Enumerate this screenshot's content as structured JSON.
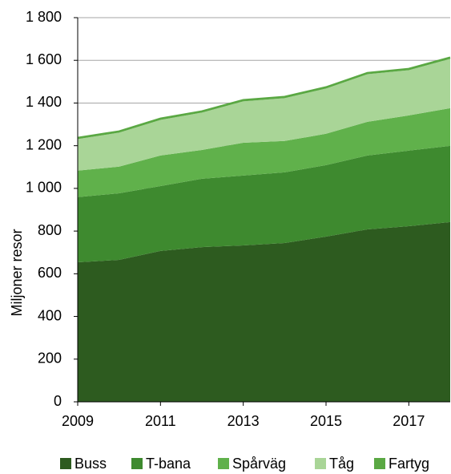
{
  "chart_data": {
    "type": "stacked_area",
    "y_label": "Miljoner resor",
    "x": [
      2009,
      2010,
      2011,
      2012,
      2013,
      2014,
      2015,
      2016,
      2017,
      2018
    ],
    "xlim": [
      2009,
      2018
    ],
    "xticks": [
      2009,
      2011,
      2013,
      2015,
      2017
    ],
    "ylim": [
      0,
      1800
    ],
    "yticks": [
      0,
      200,
      400,
      600,
      800,
      {
        "value": 1000,
        "label": "1 000"
      },
      {
        "value": 1200,
        "label": "1 200"
      },
      {
        "value": 1400,
        "label": "1 400"
      },
      {
        "value": 1600,
        "label": "1 600"
      },
      {
        "value": 1800,
        "label": "1 800"
      }
    ],
    "grid": true,
    "legend": "bottom",
    "series": [
      {
        "name": "Buss",
        "color": "#2d5b1f",
        "values": [
          654,
          665,
          707,
          725,
          733,
          744,
          774,
          808,
          823,
          842
        ]
      },
      {
        "name": "T-bana",
        "color": "#3e8a2f",
        "values": [
          305,
          312,
          304,
          320,
          327,
          331,
          335,
          346,
          354,
          357
        ]
      },
      {
        "name": "Spårväg",
        "color": "#60b14b",
        "values": [
          124,
          125,
          143,
          135,
          154,
          147,
          147,
          158,
          165,
          177
        ]
      },
      {
        "name": "Tåg",
        "color": "#a9d597",
        "values": [
          148,
          159,
          167,
          175,
          194,
          201,
          212,
          223,
          212,
          231
        ]
      },
      {
        "name": "Fartyg",
        "color": "#5aa843",
        "values": [
          6,
          6,
          6,
          6,
          6,
          6,
          6,
          6,
          6,
          6
        ]
      }
    ]
  }
}
